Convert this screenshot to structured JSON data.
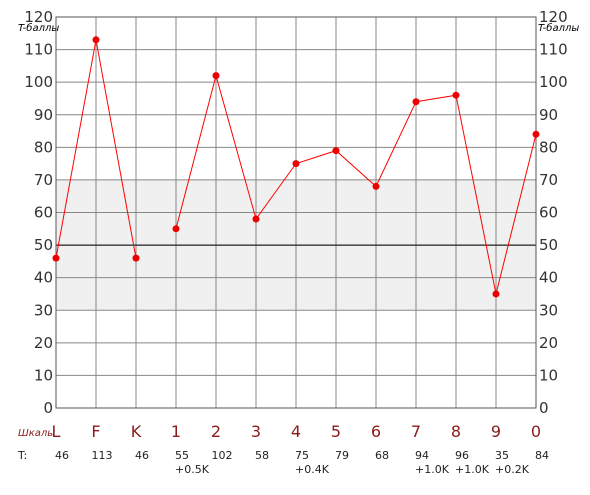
{
  "chart_data": {
    "type": "line",
    "ylabel_left": "T-баллы",
    "ylabel_right": "T-баллы",
    "ylim": [
      0,
      120
    ],
    "yticks": [
      0,
      10,
      20,
      30,
      40,
      50,
      60,
      70,
      80,
      90,
      100,
      110,
      120
    ],
    "normal_band": [
      30,
      70
    ],
    "reference_line": 50,
    "grid": true,
    "categories_label": "Шкалы",
    "categories": [
      "L",
      "F",
      "K",
      "1",
      "2",
      "3",
      "4",
      "5",
      "6",
      "7",
      "8",
      "9",
      "0"
    ],
    "values_label": "T:",
    "value_labels": [
      "46",
      "113",
      "46",
      "55",
      "102",
      "58",
      "75",
      "79",
      "68",
      "94",
      "96",
      "35",
      "84"
    ],
    "values": [
      46,
      113,
      46,
      55,
      102,
      58,
      75,
      79,
      68,
      94,
      96,
      35,
      84
    ],
    "corrections": [
      "",
      "",
      "",
      "+0.5K",
      "",
      "",
      "+0.4K",
      "",
      "",
      "+1.0K",
      "+1.0K",
      "+0.2K",
      ""
    ],
    "segments": [
      [
        0,
        1,
        2
      ],
      [
        3,
        4,
        5,
        6,
        7,
        8,
        9,
        10,
        11,
        12
      ]
    ],
    "colors": {
      "line": "#ff0000",
      "marker": "#ee0000",
      "band": "#f0f0f0",
      "grid": "#888888",
      "frame": "#555555",
      "reference": "#000000",
      "scale_text": "#8b1a1a"
    }
  }
}
